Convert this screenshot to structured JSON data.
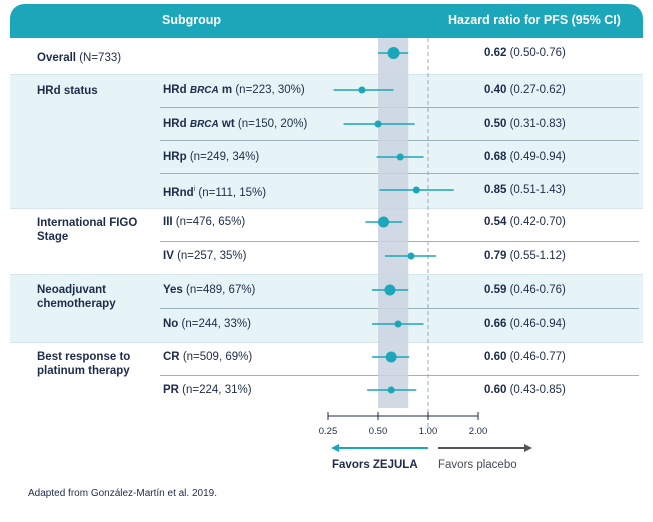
{
  "header": {
    "subgroup": "Subgroup",
    "hr": "Hazard ratio for PFS (95% CI)"
  },
  "footnote": "Adapted from González-Martín et al. 2019.",
  "favors": {
    "left": "Favors ZEJULA",
    "right": "Favors placebo"
  },
  "colors": {
    "teal": "#1ba6ba",
    "navy": "#1c2b4a",
    "band": "#e6f4f7",
    "highlight": "#c9d4df",
    "gray_arrow": "#555555"
  },
  "chart_data": {
    "type": "forest",
    "xscale": "log",
    "xlim": [
      0.25,
      2.0
    ],
    "ticks": [
      "0.25",
      "0.50",
      "1.00",
      "2.00"
    ],
    "tick_values": [
      0.25,
      0.5,
      1.0,
      2.0
    ],
    "reference_line": 1.0,
    "overall_band": [
      0.5,
      0.76
    ],
    "groups": [
      {
        "label": "Overall",
        "n_label": "(N=733)",
        "rows": [
          {
            "label": "",
            "n": "",
            "hr": 0.62,
            "lo": 0.5,
            "hi": 0.76,
            "hr_text": "0.62",
            "ci_text": "(0.50-0.76)"
          }
        ]
      },
      {
        "label": "HRd status",
        "rows": [
          {
            "pre": "HRd ",
            "italic": "BRCA",
            "post": "m",
            "n": "(n=223, 30%)",
            "hr": 0.4,
            "lo": 0.27,
            "hi": 0.62,
            "hr_text": "0.40",
            "ci_text": "(0.27-0.62)"
          },
          {
            "pre": "HRd ",
            "italic": "BRCA",
            "post": "wt",
            "n": "(n=150, 20%)",
            "hr": 0.5,
            "lo": 0.31,
            "hi": 0.83,
            "hr_text": "0.50",
            "ci_text": "(0.31-0.83)"
          },
          {
            "pre": "HRp",
            "n": "(n=249, 34%)",
            "hr": 0.68,
            "lo": 0.49,
            "hi": 0.94,
            "hr_text": "0.68",
            "ci_text": "(0.49-0.94)"
          },
          {
            "pre": "HRnd",
            "sup": "i",
            "n": "(n=111, 15%)",
            "hr": 0.85,
            "lo": 0.51,
            "hi": 1.43,
            "hr_text": "0.85",
            "ci_text": "(0.51-1.43)"
          }
        ]
      },
      {
        "label": "International FIGO Stage",
        "rows": [
          {
            "pre": "III",
            "n": "(n=476, 65%)",
            "hr": 0.54,
            "lo": 0.42,
            "hi": 0.7,
            "hr_text": "0.54",
            "ci_text": "(0.42-0.70)"
          },
          {
            "pre": "IV",
            "n": "(n=257, 35%)",
            "hr": 0.79,
            "lo": 0.55,
            "hi": 1.12,
            "hr_text": "0.79",
            "ci_text": "(0.55-1.12)"
          }
        ]
      },
      {
        "label": "Neoadjuvant chemotherapy",
        "rows": [
          {
            "pre": "Yes",
            "n": "(n=489, 67%)",
            "hr": 0.59,
            "lo": 0.46,
            "hi": 0.76,
            "hr_text": "0.59",
            "ci_text": "(0.46-0.76)"
          },
          {
            "pre": "No",
            "n": "(n=244, 33%)",
            "hr": 0.66,
            "lo": 0.46,
            "hi": 0.94,
            "hr_text": "0.66",
            "ci_text": "(0.46-0.94)"
          }
        ]
      },
      {
        "label": "Best response to platinum therapy",
        "rows": [
          {
            "pre": "CR",
            "n": "(n=509, 69%)",
            "hr": 0.6,
            "lo": 0.46,
            "hi": 0.77,
            "hr_text": "0.60",
            "ci_text": "(0.46-0.77)"
          },
          {
            "pre": "PR",
            "n": "(n=224, 31%)",
            "hr": 0.6,
            "lo": 0.43,
            "hi": 0.85,
            "hr_text": "0.60",
            "ci_text": "(0.43-0.85)"
          }
        ]
      }
    ]
  }
}
